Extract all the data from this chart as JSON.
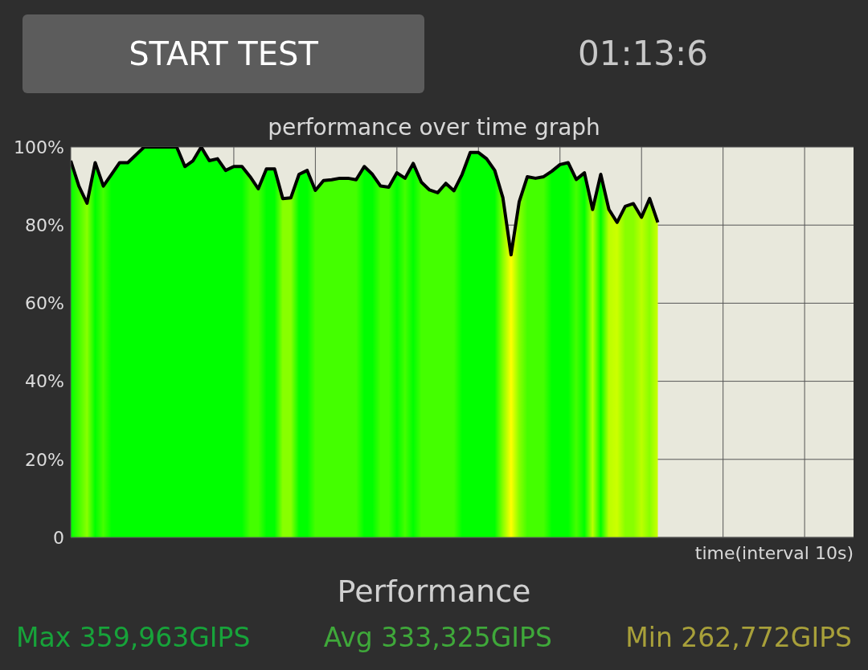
{
  "chart_data": {
    "type": "area",
    "title": "performance over time graph",
    "xlabel": "time(interval 10s)",
    "annotations": [
      "START TEST",
      "01:13:6",
      "Performance",
      "Max 359,963GIPS",
      "Avg 333,325GIPS",
      "Min 262,772GIPS"
    ],
    "categories": [
      null,
      null,
      null,
      null,
      null,
      null,
      null,
      null,
      null,
      null,
      null,
      null,
      null,
      null,
      null,
      null,
      null,
      null,
      null,
      null,
      null,
      null,
      null,
      null,
      null,
      null,
      null,
      null,
      null,
      null,
      null,
      null,
      null,
      null,
      null,
      null,
      null,
      null,
      null,
      null,
      null,
      null,
      null,
      null,
      null,
      null,
      null,
      null,
      null,
      null,
      null,
      null,
      null,
      null,
      null,
      null,
      null,
      null,
      null,
      null,
      null,
      null,
      null,
      null,
      null,
      null,
      null,
      null,
      null,
      null,
      null,
      null,
      null,
      null,
      null,
      null,
      null,
      null,
      null,
      null,
      null,
      null,
      null,
      null,
      null,
      null,
      null,
      null,
      null,
      null,
      null,
      null,
      null,
      null,
      null,
      null,
      null
    ],
    "series": [
      {
        "color": "#000000",
        "values": [
          96.5,
          90,
          85.6,
          96,
          90,
          93,
          96,
          96,
          98,
          100,
          100,
          100,
          100,
          100,
          95,
          96.5,
          100,
          96.5,
          97,
          94,
          95,
          95,
          92.4,
          89.3,
          94.4,
          94.4,
          86.8,
          87,
          93,
          94,
          88.9,
          91.4,
          91.6,
          92,
          92,
          91.6,
          95,
          93,
          90,
          89.7,
          93.4,
          92,
          95.8,
          91,
          89,
          88.3,
          90.7,
          88.8,
          93,
          98.6,
          98.6,
          97,
          94,
          87,
          72.4,
          86,
          92.4,
          92,
          92.4,
          93.8,
          95.5,
          96,
          91.7,
          93.4,
          84,
          93,
          84,
          80.7,
          84.8,
          85.5,
          82,
          86.8,
          80.7,
          null,
          null,
          null,
          null,
          null,
          null,
          null,
          null,
          null,
          null,
          null,
          null,
          null,
          null,
          null,
          null,
          null,
          null,
          null,
          null,
          null,
          null,
          null,
          null
        ],
        "colors": [
          "#00ff00",
          "#44ff00",
          "#88ff00",
          "#00ff00",
          "#44ff00",
          "#00ff00",
          "#00ff00",
          "#00ff00",
          "#00ff00",
          "#00ff00",
          "#00ff00",
          "#00ff00",
          "#00ff00",
          "#00ff00",
          "#00ff00",
          "#00ff00",
          "#00ff00",
          "#00ff00",
          "#00ff00",
          "#00ff00",
          "#00ff00",
          "#00ff00",
          "#44ff00",
          "#44ff00",
          "#00ff00",
          "#00ff00",
          "#88ff00",
          "#88ff00",
          "#00ff00",
          "#00ff00",
          "#44ff00",
          "#44ff00",
          "#44ff00",
          "#44ff00",
          "#44ff00",
          "#44ff00",
          "#00ff00",
          "#00ff00",
          "#44ff00",
          "#44ff00",
          "#00ff00",
          "#44ff00",
          "#00ff00",
          "#44ff00",
          "#44ff00",
          "#44ff00",
          "#44ff00",
          "#44ff00",
          "#00ff00",
          "#00ff00",
          "#00ff00",
          "#00ff00",
          "#00ff00",
          "#88ff00",
          "#ffff00",
          "#88ff00",
          "#44ff00",
          "#44ff00",
          "#44ff00",
          "#00ff00",
          "#00ff00",
          "#00ff00",
          "#44ff00",
          "#00ff00",
          "#bbff00",
          "#00ff00",
          "#bbff00",
          "#ccff00",
          "#88ff00",
          "#88ff00",
          "#bbff00",
          "#88ff00",
          "#ccff00",
          null,
          null,
          null,
          null,
          null,
          null,
          null,
          null,
          null,
          null,
          null,
          null,
          null,
          null,
          null,
          null,
          null,
          null,
          null,
          null,
          null,
          null,
          null,
          null
        ]
      }
    ],
    "ylim": [
      0,
      100
    ],
    "yticks": [
      0,
      {
        "value": 20,
        "label": "20%"
      },
      {
        "value": 40,
        "label": "40%"
      },
      {
        "value": 60,
        "label": "60%"
      },
      {
        "value": 80,
        "label": "80%"
      },
      {
        "value": 100,
        "label": "100%"
      }
    ],
    "grid": true,
    "tick_labels": "y",
    "marker": "none",
    "line_style": "solid"
  }
}
